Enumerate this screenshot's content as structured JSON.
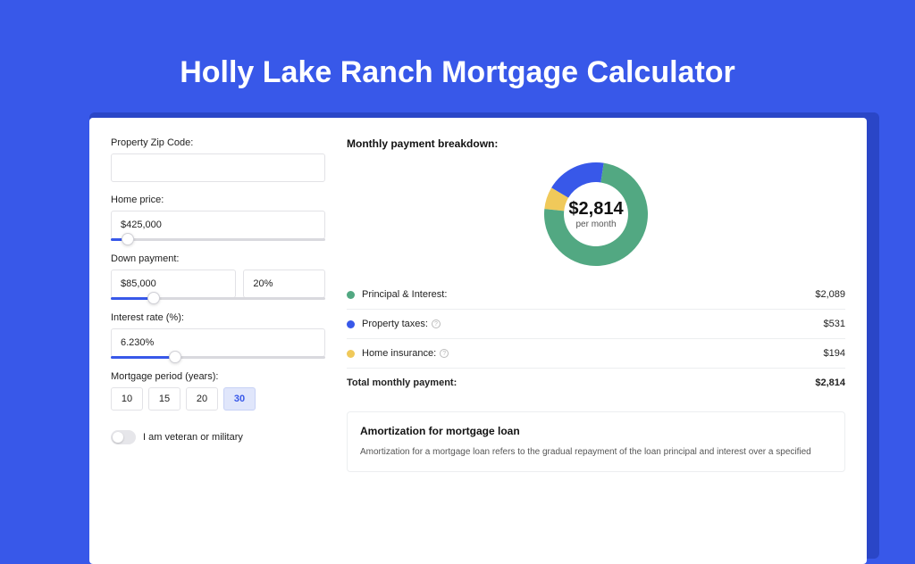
{
  "page": {
    "title": "Holly Lake Ranch Mortgage Calculator",
    "bg_color": "#3858e9"
  },
  "form": {
    "zip": {
      "label": "Property Zip Code:",
      "value": ""
    },
    "home_price": {
      "label": "Home price:",
      "value": "$425,000",
      "slider_percent": 8
    },
    "down_payment": {
      "label": "Down payment:",
      "amount": "$85,000",
      "percent": "20%",
      "slider_percent": 20
    },
    "interest_rate": {
      "label": "Interest rate (%):",
      "value": "6.230%",
      "slider_percent": 30
    },
    "period": {
      "label": "Mortgage period (years):",
      "options": [
        "10",
        "15",
        "20",
        "30"
      ],
      "selected": "30"
    },
    "veteran": {
      "label": "I am veteran or military",
      "checked": false
    }
  },
  "breakdown": {
    "title": "Monthly payment breakdown:",
    "center_amount": "$2,814",
    "center_sub": "per month",
    "donut": {
      "size": 120,
      "inner_radius_ratio": 0.62,
      "slices": [
        {
          "color": "#52a882",
          "value": 2089
        },
        {
          "color": "#3858e9",
          "value": 531
        },
        {
          "color": "#f0c95a",
          "value": 194
        }
      ]
    },
    "rows": [
      {
        "dot": "#52a882",
        "label": "Principal & Interest:",
        "value": "$2,089",
        "info": false
      },
      {
        "dot": "#3858e9",
        "label": "Property taxes:",
        "value": "$531",
        "info": true
      },
      {
        "dot": "#f0c95a",
        "label": "Home insurance:",
        "value": "$194",
        "info": true
      }
    ],
    "total": {
      "label": "Total monthly payment:",
      "value": "$2,814"
    }
  },
  "amortization": {
    "title": "Amortization for mortgage loan",
    "text": "Amortization for a mortgage loan refers to the gradual repayment of the loan principal and interest over a specified"
  }
}
